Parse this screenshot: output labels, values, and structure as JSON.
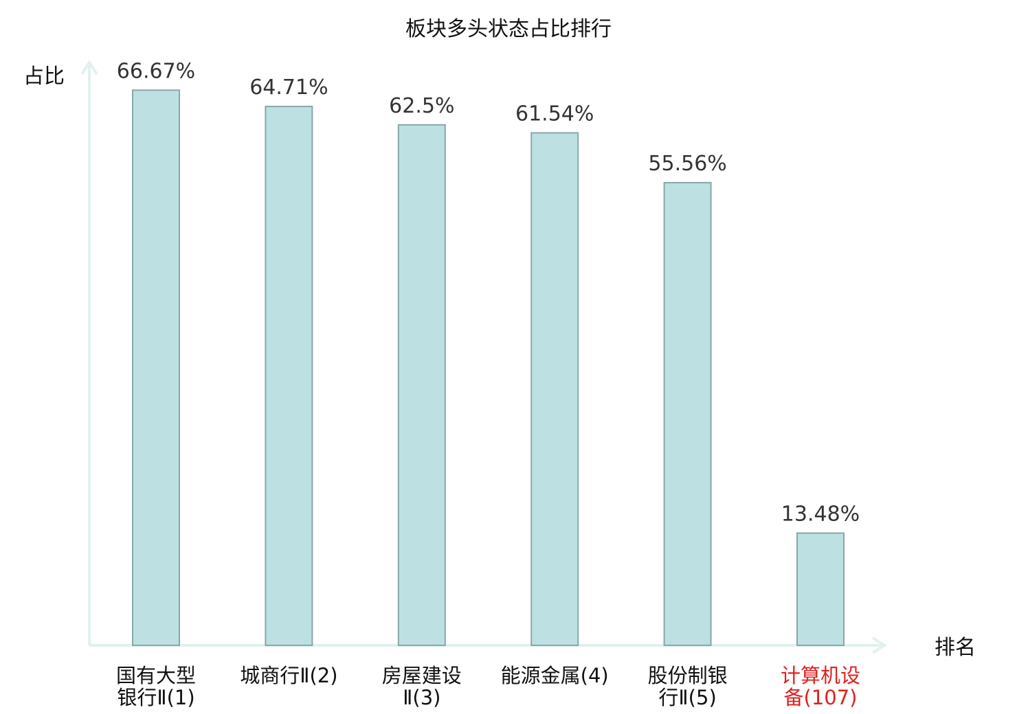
{
  "chart_data": {
    "type": "bar",
    "title": "板块多头状态占比排行",
    "ylabel": "占比",
    "xlabel": "排名",
    "ylim": [
      0,
      70
    ],
    "grid": false,
    "categories": [
      [
        "国有大型",
        "银行Ⅱ(1)"
      ],
      [
        "城商行Ⅱ(2)"
      ],
      [
        "房屋建设",
        "Ⅱ(3)"
      ],
      [
        "能源金属(4)"
      ],
      [
        "股份制银",
        "行Ⅱ(5)"
      ],
      [
        "计算机设",
        "备(107)"
      ]
    ],
    "values": [
      66.67,
      64.71,
      62.5,
      61.54,
      55.56,
      13.48
    ],
    "value_labels": [
      "66.67%",
      "64.71%",
      "62.5%",
      "61.54%",
      "55.56%",
      "13.48%"
    ],
    "highlight_index": 5,
    "colors": {
      "bar_fill": "#bde0e3",
      "bar_stroke": "#8aa6a9",
      "axis": "#e2f1ee",
      "label": "#111111",
      "value_label": "#333333",
      "highlight": "#e02020"
    }
  }
}
